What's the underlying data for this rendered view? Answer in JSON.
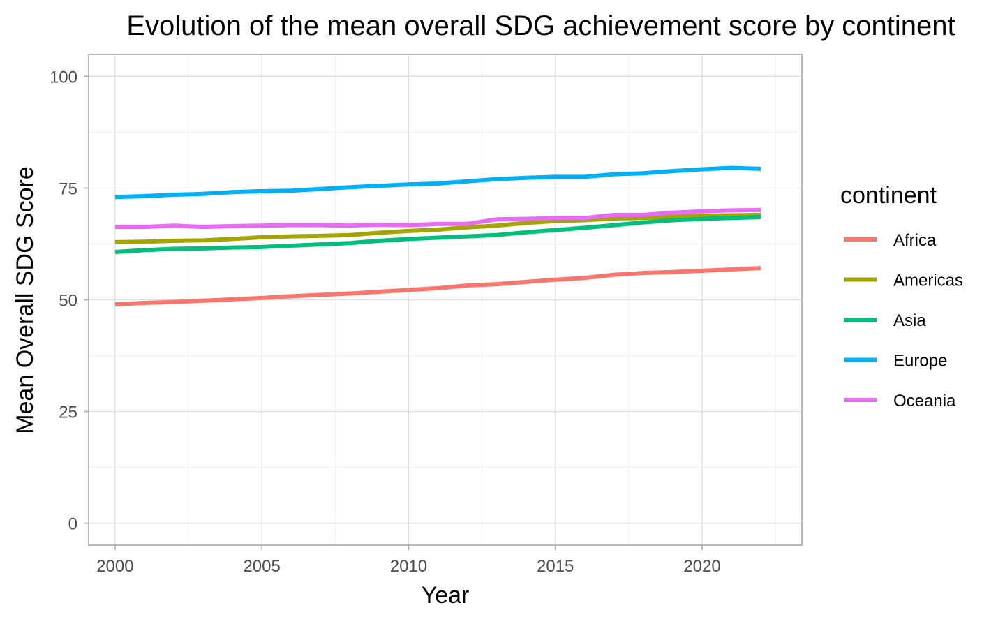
{
  "chart_data": {
    "type": "line",
    "title": "Evolution of the mean overall SDG achievement score by continent",
    "xlabel": "Year",
    "ylabel": "Mean Overall SDG Score",
    "xlim": [
      1999.1,
      2023.4
    ],
    "ylim": [
      -4.9,
      104.9
    ],
    "x_ticks": [
      2000,
      2005,
      2010,
      2015,
      2020
    ],
    "y_ticks": [
      0,
      25,
      50,
      75,
      100
    ],
    "grid": true,
    "legend": {
      "title": "continent",
      "position": "right"
    },
    "x": [
      2000,
      2001,
      2002,
      2003,
      2004,
      2005,
      2006,
      2007,
      2008,
      2009,
      2010,
      2011,
      2012,
      2013,
      2014,
      2015,
      2016,
      2017,
      2018,
      2019,
      2020,
      2021,
      2022
    ],
    "series": [
      {
        "name": "Africa",
        "color": "#F8766D",
        "values": [
          49.0,
          49.3,
          49.5,
          49.8,
          50.1,
          50.4,
          50.8,
          51.1,
          51.4,
          51.8,
          52.2,
          52.6,
          53.2,
          53.5,
          54.0,
          54.5,
          54.9,
          55.6,
          56.0,
          56.2,
          56.5,
          56.8,
          57.1
        ]
      },
      {
        "name": "Americas",
        "color": "#A3A500",
        "values": [
          62.9,
          63.0,
          63.2,
          63.3,
          63.6,
          64.0,
          64.2,
          64.3,
          64.5,
          65.0,
          65.4,
          65.7,
          66.2,
          66.6,
          67.2,
          67.6,
          67.8,
          68.2,
          68.3,
          68.6,
          68.8,
          68.9,
          69.0
        ]
      },
      {
        "name": "Asia",
        "color": "#00BF7D",
        "values": [
          60.7,
          61.1,
          61.4,
          61.5,
          61.7,
          61.8,
          62.1,
          62.4,
          62.7,
          63.2,
          63.6,
          63.9,
          64.2,
          64.5,
          65.1,
          65.6,
          66.1,
          66.7,
          67.3,
          67.8,
          68.1,
          68.3,
          68.5
        ]
      },
      {
        "name": "Europe",
        "color": "#00B0F6",
        "values": [
          73.0,
          73.2,
          73.5,
          73.7,
          74.1,
          74.3,
          74.4,
          74.8,
          75.2,
          75.5,
          75.8,
          76.0,
          76.5,
          77.0,
          77.3,
          77.5,
          77.5,
          78.1,
          78.3,
          78.8,
          79.2,
          79.5,
          79.3
        ]
      },
      {
        "name": "Oceania",
        "color": "#E76BF3",
        "values": [
          66.3,
          66.3,
          66.6,
          66.3,
          66.5,
          66.6,
          66.7,
          66.7,
          66.6,
          66.8,
          66.7,
          67.0,
          67.0,
          68.0,
          68.1,
          68.3,
          68.3,
          69.0,
          69.0,
          69.5,
          69.8,
          70.0,
          70.1
        ]
      }
    ]
  }
}
